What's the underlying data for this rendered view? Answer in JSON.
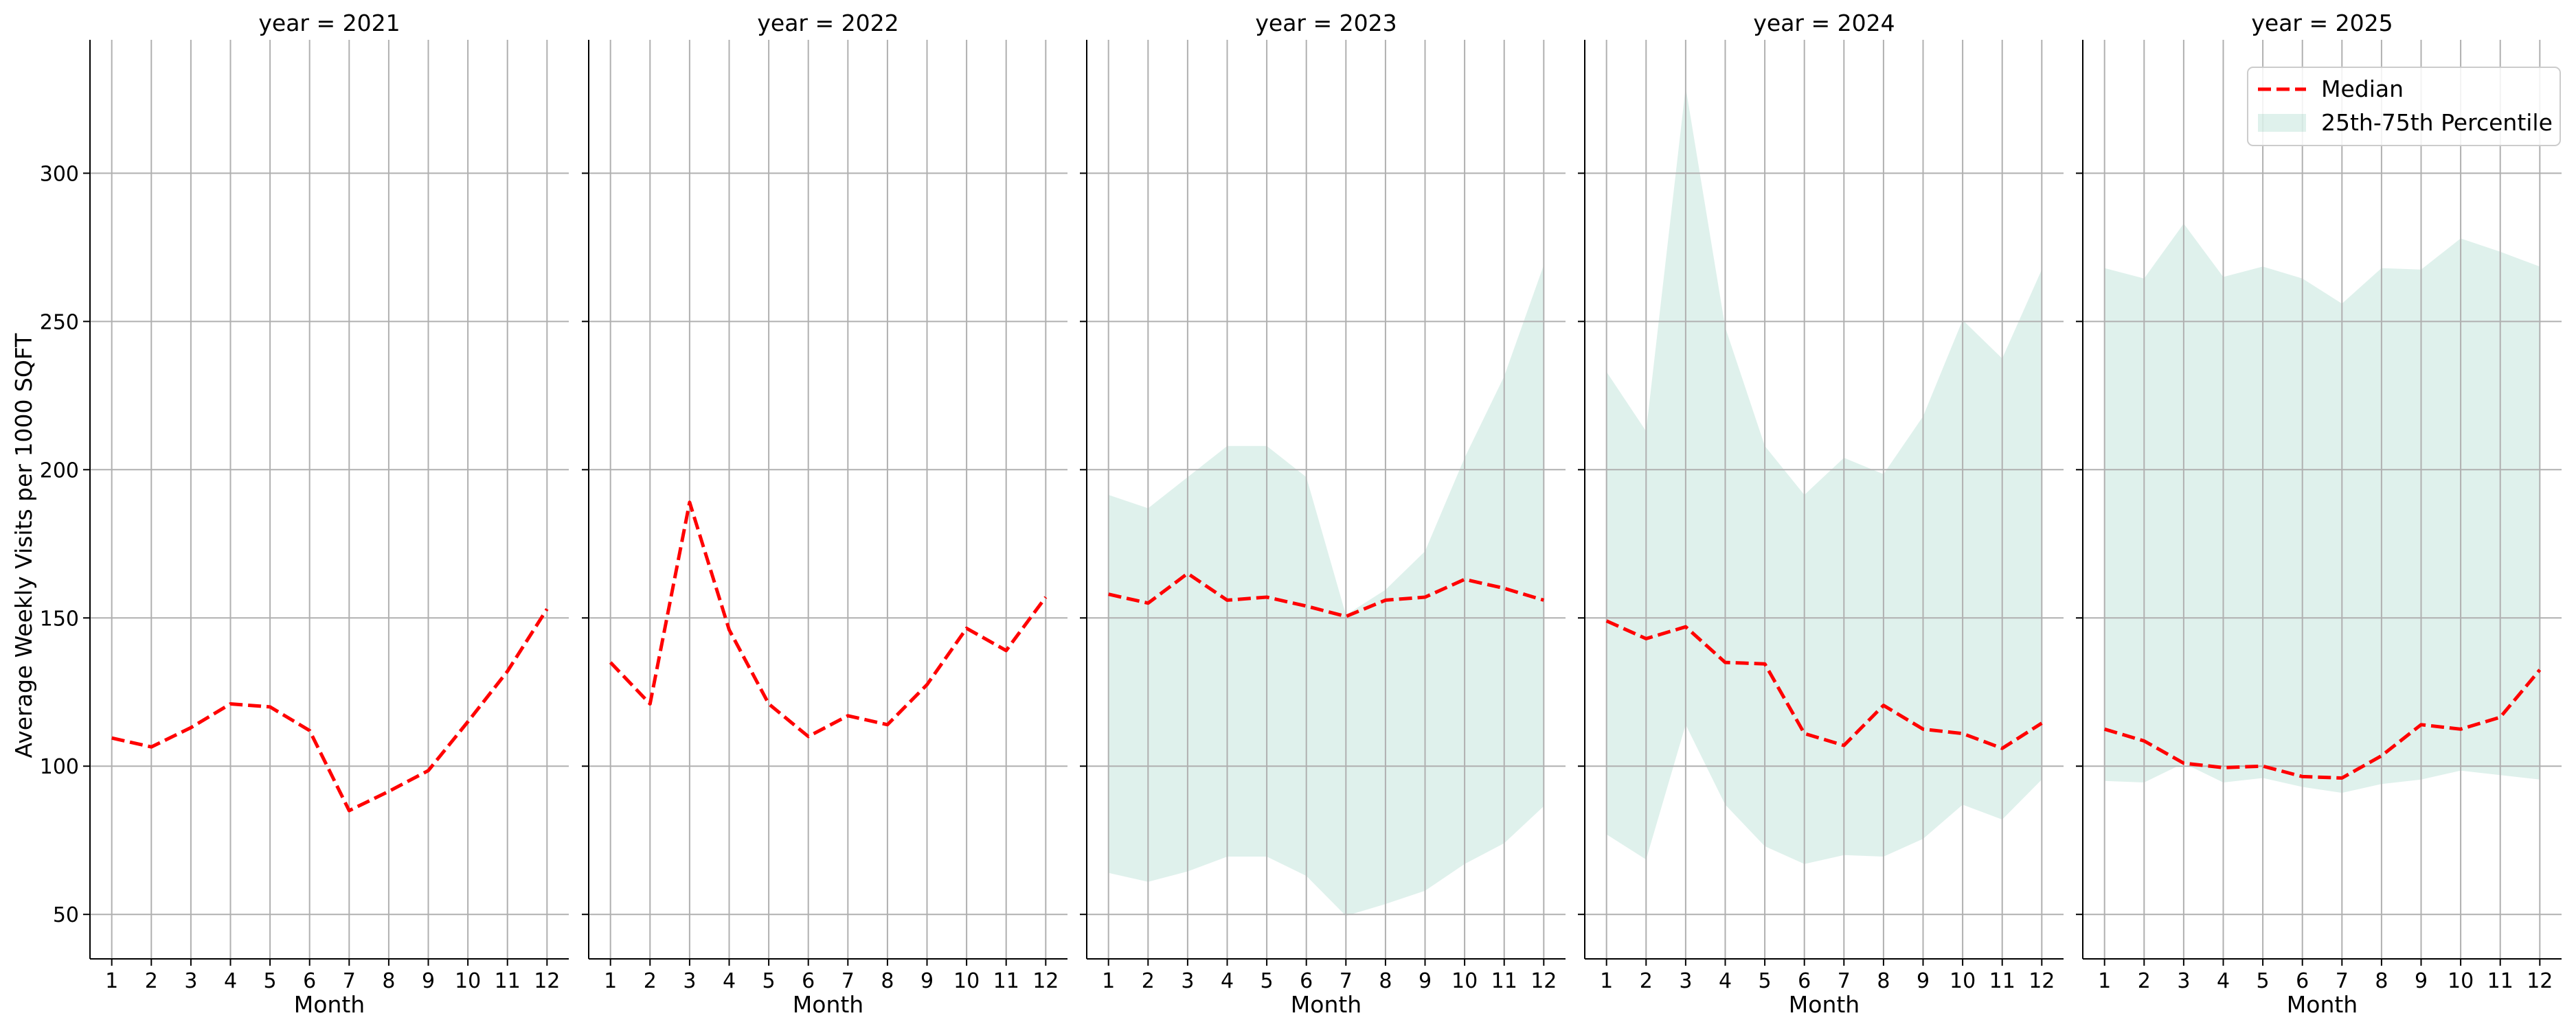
{
  "figure": {
    "ylabel": "Average Weekly Visits per 1000 SQFT",
    "xlabel": "Month",
    "legend": {
      "placement": "top-right",
      "median_label": "Median",
      "band_label": "25th-75th Percentile"
    },
    "colors": {
      "median": "#ff0000",
      "band": "#1a9e77",
      "grid": "#b0b0b0",
      "axis": "#000000"
    }
  },
  "chart_data": [
    {
      "type": "line",
      "title": "year = 2021",
      "x": [
        1,
        2,
        3,
        4,
        5,
        6,
        7,
        8,
        9,
        10,
        11,
        12
      ],
      "median": [
        109.5,
        106.5,
        113,
        121,
        120,
        112,
        85,
        91.5,
        98.5,
        115,
        132,
        153
      ],
      "q25": [],
      "q75": [],
      "xlabel": "Month",
      "ylabel": "Average Weekly Visits per 1000 SQFT",
      "xticks": [
        1,
        2,
        3,
        4,
        5,
        6,
        7,
        8,
        9,
        10,
        11,
        12
      ],
      "yticks": [
        50,
        100,
        150,
        200,
        250,
        300
      ],
      "xlim": [
        0.45,
        12.55
      ],
      "ylim": [
        35,
        345
      ],
      "grid": true
    },
    {
      "type": "line",
      "title": "year = 2022",
      "x": [
        1,
        2,
        3,
        4,
        5,
        6,
        7,
        8,
        9,
        10,
        11,
        12
      ],
      "median": [
        135,
        121,
        189,
        146,
        121,
        110,
        117,
        114,
        127.5,
        146.5,
        139,
        157
      ],
      "q25": [],
      "q75": [],
      "xlabel": "Month",
      "xticks": [
        1,
        2,
        3,
        4,
        5,
        6,
        7,
        8,
        9,
        10,
        11,
        12
      ],
      "xlim": [
        0.45,
        12.55
      ],
      "ylim": [
        35,
        345
      ],
      "grid": true
    },
    {
      "type": "area",
      "title": "year = 2023",
      "x": [
        1,
        2,
        3,
        4,
        5,
        6,
        7,
        8,
        9,
        10,
        11,
        12
      ],
      "median": [
        158,
        155,
        165,
        156,
        157,
        154,
        150.5,
        156,
        157,
        163,
        160,
        156
      ],
      "q25": [
        64,
        61,
        64.5,
        69.5,
        69.5,
        63,
        49.5,
        53.5,
        58,
        67,
        74,
        86.5
      ],
      "q75": [
        191.5,
        187,
        197.5,
        208,
        208,
        197.5,
        151,
        159.5,
        172.5,
        204,
        231.5,
        269
      ],
      "xlabel": "Month",
      "xticks": [
        1,
        2,
        3,
        4,
        5,
        6,
        7,
        8,
        9,
        10,
        11,
        12
      ],
      "xlim": [
        0.45,
        12.55
      ],
      "ylim": [
        35,
        345
      ],
      "grid": true
    },
    {
      "type": "area",
      "title": "year = 2024",
      "x": [
        1,
        2,
        3,
        4,
        5,
        6,
        7,
        8,
        9,
        10,
        11,
        12
      ],
      "median": [
        149,
        143,
        147,
        135,
        134.5,
        111,
        107,
        120.5,
        112.5,
        111,
        106,
        114.5
      ],
      "q25": [
        77,
        68.5,
        114,
        87,
        73,
        67,
        70,
        69.5,
        75.5,
        87,
        82,
        95.5
      ],
      "q75": [
        233,
        213,
        329,
        248,
        208,
        191.5,
        204,
        198.5,
        218,
        250.5,
        237.5,
        267.5
      ],
      "xlabel": "Month",
      "xticks": [
        1,
        2,
        3,
        4,
        5,
        6,
        7,
        8,
        9,
        10,
        11,
        12
      ],
      "xlim": [
        0.45,
        12.55
      ],
      "ylim": [
        35,
        345
      ],
      "grid": true
    },
    {
      "type": "area",
      "title": "year = 2025",
      "x": [
        1,
        2,
        3,
        4,
        5,
        6,
        7,
        8,
        9,
        10,
        11,
        12
      ],
      "median": [
        112.5,
        108.5,
        101,
        99.5,
        100,
        96.5,
        96,
        103.5,
        114,
        112.5,
        116.5,
        132.5
      ],
      "q25": [
        95,
        94.5,
        101,
        94.5,
        96,
        93,
        91,
        94,
        95.5,
        98.5,
        97,
        95.5
      ],
      "q75": [
        268,
        264.5,
        283,
        265,
        268.5,
        264.5,
        256,
        268,
        267.5,
        278,
        273.5,
        268.5
      ],
      "xlabel": "Month",
      "xticks": [
        1,
        2,
        3,
        4,
        5,
        6,
        7,
        8,
        9,
        10,
        11,
        12
      ],
      "xlim": [
        0.45,
        12.55
      ],
      "ylim": [
        35,
        345
      ],
      "grid": true
    }
  ]
}
